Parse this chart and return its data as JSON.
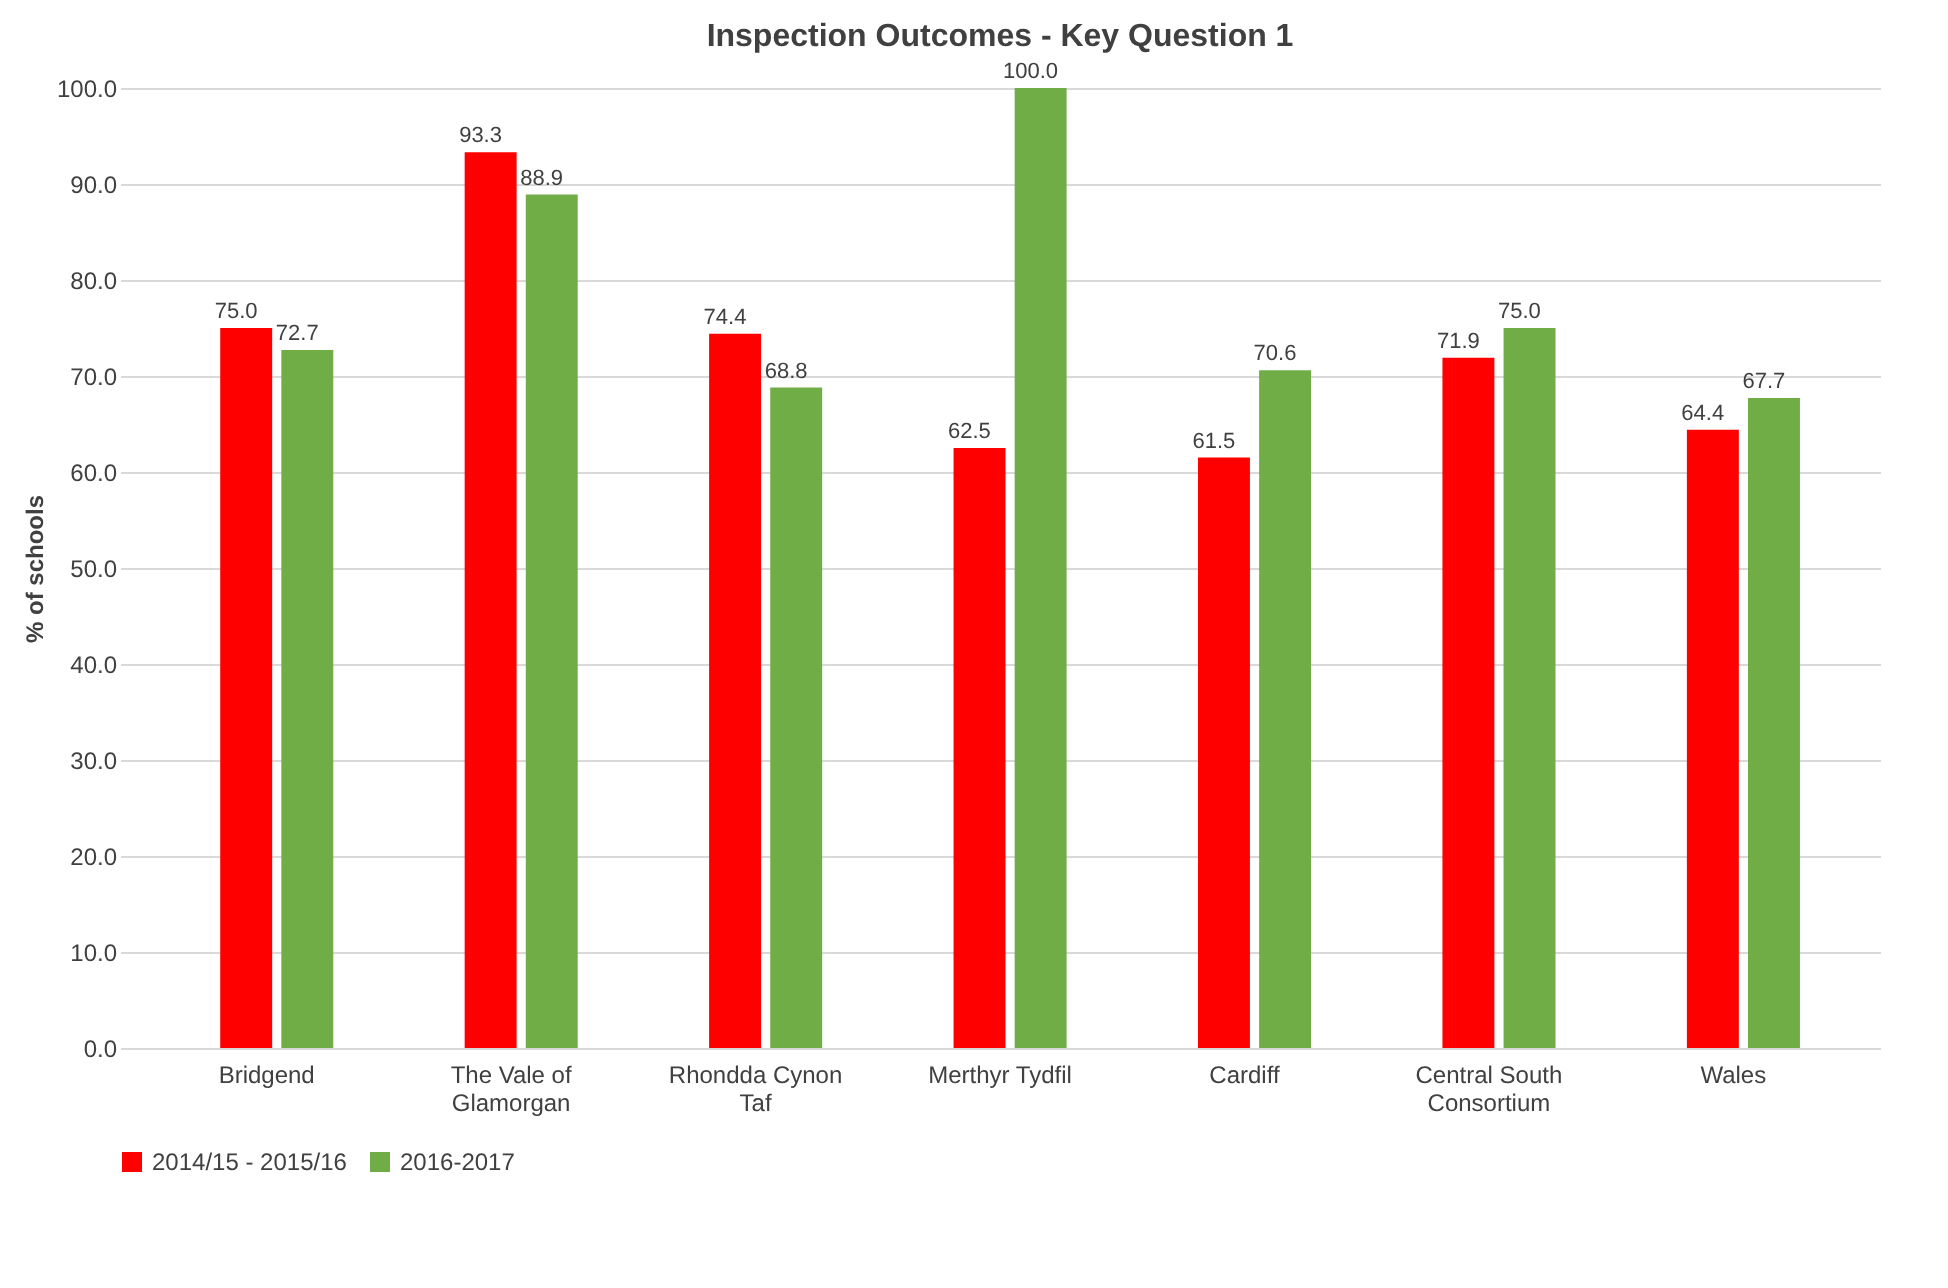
{
  "chart_data": {
    "type": "bar",
    "title": "Inspection Outcomes - Key Question 1",
    "ylabel": "% of schools",
    "categories": [
      "Bridgend",
      "The Vale of Glamorgan",
      "Rhondda Cynon Taf",
      "Merthyr Tydfil",
      "Cardiff",
      "Central South Consortium",
      "Wales"
    ],
    "series": [
      {
        "name": "2014/15 - 2015/16",
        "color": "#ff0000",
        "values": [
          75.0,
          93.3,
          74.4,
          62.5,
          61.5,
          71.9,
          64.4
        ],
        "value_labels": [
          "75.0",
          "93.3",
          "74.4",
          "62.5",
          "61.5",
          "71.9",
          "64.4"
        ]
      },
      {
        "name": "2016-2017",
        "color": "#70ad47",
        "values": [
          72.7,
          88.9,
          68.8,
          100.0,
          70.6,
          75.0,
          67.7
        ],
        "value_labels": [
          "72.7",
          "88.9",
          "68.8",
          "100.0",
          "70.6",
          "75.0",
          "67.7"
        ]
      }
    ],
    "ylim": [
      0,
      100
    ],
    "yticks": [
      {
        "value": 0,
        "label": "0.0"
      },
      {
        "value": 10,
        "label": "10.0"
      },
      {
        "value": 20,
        "label": "20.0"
      },
      {
        "value": 30,
        "label": "30.0"
      },
      {
        "value": 40,
        "label": "40.0"
      },
      {
        "value": 50,
        "label": "50.0"
      },
      {
        "value": 60,
        "label": "60.0"
      },
      {
        "value": 70,
        "label": "70.0"
      },
      {
        "value": 80,
        "label": "80.0"
      },
      {
        "value": 90,
        "label": "90.0"
      },
      {
        "value": 100,
        "label": "100.0"
      }
    ],
    "grid": "y",
    "legend": "bottom"
  }
}
